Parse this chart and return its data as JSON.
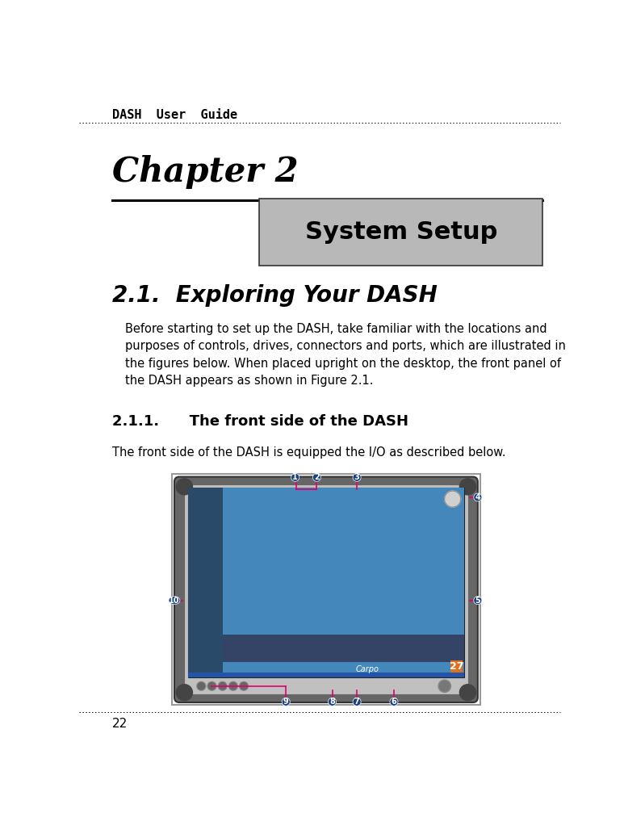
{
  "page_width": 7.73,
  "page_height": 10.07,
  "dpi": 100,
  "bg_color": "#ffffff",
  "header_text": "DASH  User  Guide",
  "header_fontsize": 11,
  "chapter_text": "Chapter 2",
  "chapter_fontsize": 30,
  "system_setup_text": "System Setup",
  "system_setup_fontsize": 22,
  "system_setup_box_color": "#b8b8b8",
  "section_title": "2.1.  Exploring Your DASH",
  "section_title_fontsize": 20,
  "body_text_lines": [
    "Before starting to set up the DASH, take familiar with the locations and",
    "purposes of controls, drives, connectors and ports, which are illustrated in",
    "the figures below. When placed upright on the desktop, the front panel of",
    "the DASH appears as shown in Figure 2.1."
  ],
  "body_fontsize": 10.5,
  "subsection_title": "2.1.1.      The front side of the DASH",
  "subsection_title_fontsize": 13,
  "sub_body_text": "The front side of the DASH is equipped the I/O as described below.",
  "sub_body_fontsize": 10.5,
  "page_number": "22",
  "badge_color": "#1a4080",
  "line_color_pink": "#e0006a",
  "device_outer_color": "#666666",
  "device_inner_color": "#c0c0c0",
  "device_screen_color": "#4488bb",
  "device_bezel_color": "#888888"
}
